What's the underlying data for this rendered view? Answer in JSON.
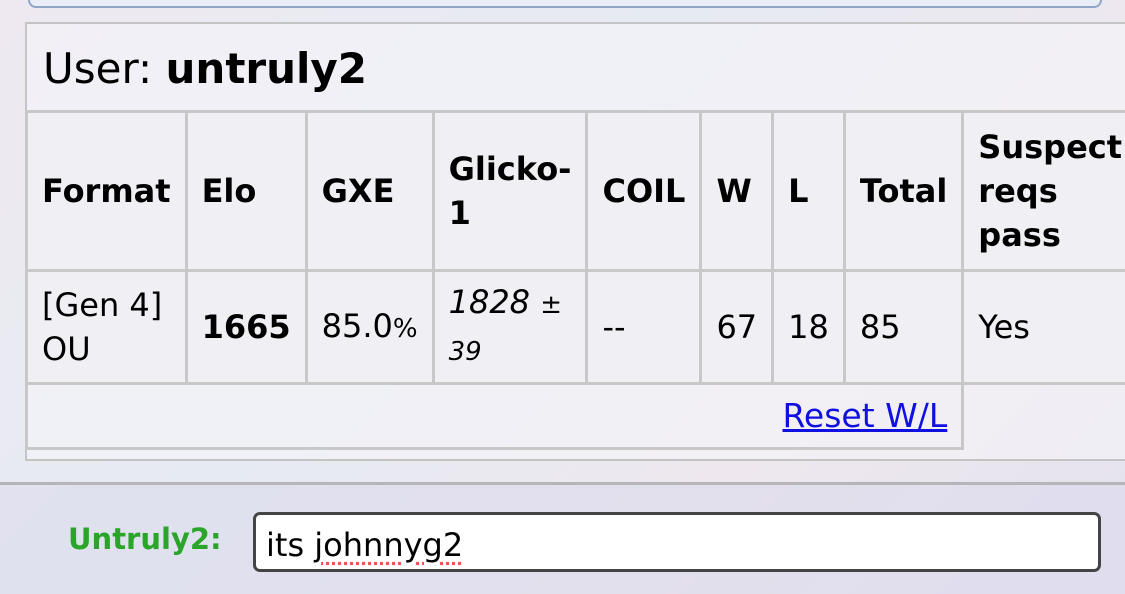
{
  "user": {
    "prefix": "User:",
    "name": "untruly2"
  },
  "table": {
    "headers": [
      "Format",
      "Elo",
      "GXE",
      "Glicko-1",
      "COIL",
      "W",
      "L",
      "Total",
      "Suspect reqs pass"
    ],
    "row": {
      "format": "[Gen 4] OU",
      "elo": "1665",
      "gxe_main": "85.0",
      "gxe_pct": "%",
      "glicko": "1828",
      "glicko_pm": "±",
      "glicko_dev": "39",
      "coil": "--",
      "w": "67",
      "l": "18",
      "total": "85",
      "suspect": "Yes"
    }
  },
  "reset_link": "Reset W/L",
  "chat": {
    "label": "Untruly2:",
    "input_value": "its ",
    "input_misspelled": "johnnyg2"
  },
  "colors": {
    "link": "#1010e0",
    "chat_label": "#2aa52a"
  }
}
